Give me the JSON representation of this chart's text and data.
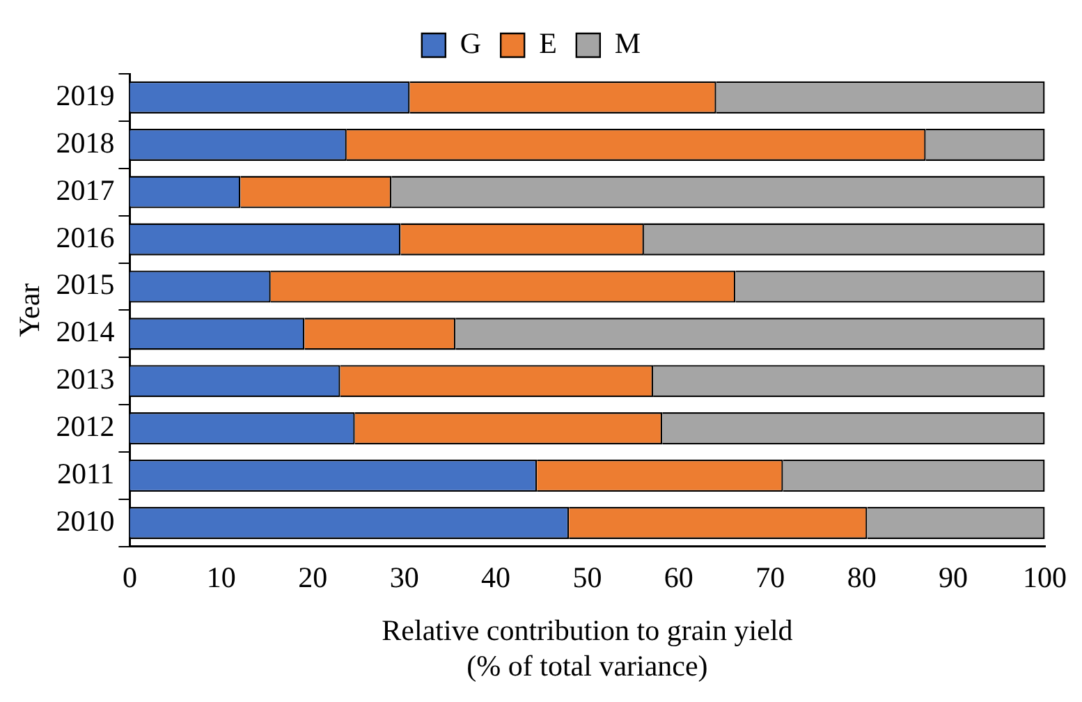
{
  "chart_data": {
    "type": "bar",
    "orientation": "horizontal",
    "stacked": true,
    "xlabel": [
      "Relative contribution to grain yield",
      "(% of total variance)"
    ],
    "ylabel": "Year",
    "categories": [
      "2019",
      "2018",
      "2017",
      "2016",
      "2015",
      "2014",
      "2013",
      "2012",
      "2011",
      "2010"
    ],
    "series": [
      {
        "name": "G",
        "color": "#4472c4",
        "values": [
          30.6,
          23.7,
          12.1,
          29.6,
          15.4,
          19.1,
          23.0,
          24.6,
          44.5,
          48.0
        ]
      },
      {
        "name": "E",
        "color": "#ed7d31",
        "values": [
          33.5,
          63.3,
          16.5,
          26.6,
          50.8,
          16.5,
          34.2,
          33.6,
          26.9,
          32.6
        ]
      },
      {
        "name": "M",
        "color": "#a5a5a5",
        "values": [
          35.9,
          13.0,
          71.4,
          43.8,
          33.8,
          64.4,
          42.8,
          41.8,
          28.6,
          19.4
        ]
      }
    ],
    "xlim": [
      0,
      100
    ],
    "xticks": [
      0,
      10,
      20,
      30,
      40,
      50,
      60,
      70,
      80,
      90,
      100
    ],
    "grid": false,
    "legend": "top"
  }
}
